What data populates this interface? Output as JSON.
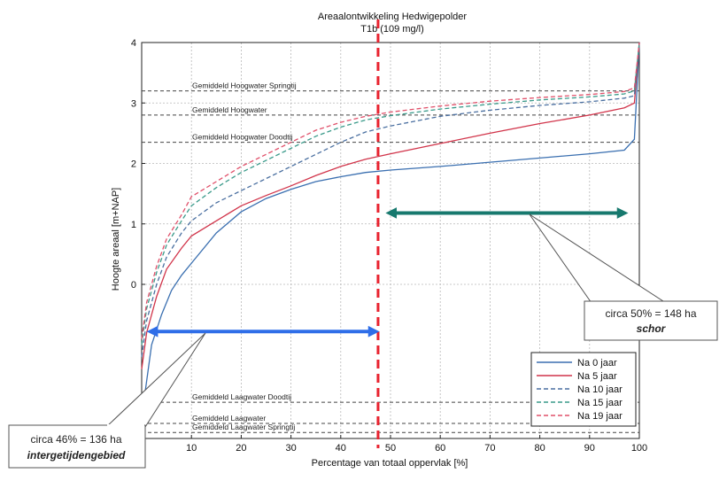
{
  "chart_data": {
    "type": "line",
    "title": "Areaalontwikkeling Hedwigepolder",
    "subtitle": "T1b (109 mg/l)",
    "xlabel": "Percentage van totaal oppervlak [%]",
    "ylabel": "Hoogte areaal [m+NAP]",
    "xlim": [
      0,
      100
    ],
    "ylim": [
      -2.2,
      4
    ],
    "xticks": [
      "10",
      "20",
      "30",
      "40",
      "50",
      "60",
      "70",
      "80",
      "90",
      "100"
    ],
    "yticks": [
      "0",
      "1",
      "2",
      "3",
      "4"
    ],
    "grid": true,
    "legend_position": "bottom-right",
    "series": [
      {
        "name": "Na 0 jaar",
        "color": "#3a6fb0",
        "dash": "solid",
        "x": [
          0,
          1,
          2,
          4,
          6,
          8,
          10,
          15,
          20,
          25,
          30,
          35,
          40,
          45,
          50,
          60,
          70,
          80,
          90,
          97,
          99,
          100
        ],
        "y": [
          -2.2,
          -1.6,
          -1.0,
          -0.5,
          -0.1,
          0.15,
          0.35,
          0.85,
          1.2,
          1.42,
          1.57,
          1.7,
          1.78,
          1.85,
          1.89,
          1.95,
          2.02,
          2.09,
          2.16,
          2.22,
          2.4,
          4.0
        ]
      },
      {
        "name": "Na 5 jaar",
        "color": "#d1344a",
        "dash": "solid",
        "x": [
          0,
          1,
          3,
          5,
          8,
          10,
          15,
          20,
          25,
          30,
          35,
          40,
          45,
          50,
          60,
          70,
          80,
          90,
          97,
          99,
          100
        ],
        "y": [
          -1.4,
          -0.8,
          -0.2,
          0.25,
          0.6,
          0.8,
          1.05,
          1.3,
          1.47,
          1.63,
          1.8,
          1.95,
          2.07,
          2.16,
          2.33,
          2.5,
          2.66,
          2.8,
          2.92,
          3.0,
          4.0
        ]
      },
      {
        "name": "Na 10 jaar",
        "color": "#4a6fa0",
        "dash": "dashed",
        "x": [
          0,
          1,
          3,
          5,
          8,
          10,
          15,
          20,
          25,
          30,
          35,
          40,
          45,
          50,
          60,
          70,
          80,
          90,
          97,
          99,
          100
        ],
        "y": [
          -1.2,
          -0.6,
          0.0,
          0.45,
          0.85,
          1.05,
          1.35,
          1.55,
          1.75,
          1.95,
          2.15,
          2.35,
          2.52,
          2.62,
          2.78,
          2.88,
          2.96,
          3.02,
          3.08,
          3.12,
          4.0
        ]
      },
      {
        "name": "Na 15 jaar",
        "color": "#3a9a8a",
        "dash": "dashed",
        "x": [
          0,
          1,
          3,
          5,
          8,
          10,
          15,
          20,
          25,
          30,
          35,
          40,
          45,
          50,
          60,
          70,
          80,
          90,
          97,
          99,
          100
        ],
        "y": [
          -1.0,
          -0.4,
          0.2,
          0.65,
          1.05,
          1.3,
          1.6,
          1.85,
          2.05,
          2.25,
          2.45,
          2.6,
          2.72,
          2.79,
          2.9,
          2.98,
          3.05,
          3.1,
          3.15,
          3.2,
          4.0
        ]
      },
      {
        "name": "Na 19 jaar",
        "color": "#e0506a",
        "dash": "dashed",
        "x": [
          0,
          1,
          3,
          5,
          8,
          10,
          15,
          20,
          25,
          30,
          35,
          40,
          45,
          50,
          60,
          70,
          80,
          90,
          97,
          99,
          100
        ],
        "y": [
          -0.9,
          -0.3,
          0.3,
          0.75,
          1.15,
          1.45,
          1.7,
          1.95,
          2.15,
          2.35,
          2.55,
          2.68,
          2.78,
          2.85,
          2.95,
          3.03,
          3.09,
          3.14,
          3.19,
          3.25,
          4.0
        ]
      }
    ],
    "reference_lines": [
      {
        "label": "Gemiddeld Hoogwater Springtij",
        "y": 3.2
      },
      {
        "label": "Gemiddeld Hoogwater",
        "y": 2.8
      },
      {
        "label": "Gemiddeld Hoogwater Doodtij",
        "y": 2.35
      },
      {
        "label": "Gemiddeld Laagwater Doodtij",
        "y": -1.95
      },
      {
        "label": "Gemiddeld Laagwater",
        "y": -2.3
      },
      {
        "label": "Gemiddeld Laagwater Springtij",
        "y": -2.45
      }
    ],
    "vertical_marker": {
      "x": 47.5,
      "color": "#e8222e"
    },
    "arrows": [
      {
        "name": "intergetijdengebied",
        "x_from": 0,
        "x_to": 47,
        "y": -0.78,
        "color": "#2f6ee8"
      },
      {
        "name": "schor",
        "x_from": 48,
        "x_to": 97,
        "y": 1.18,
        "color": "#17796e"
      }
    ]
  },
  "callouts": {
    "schor": {
      "line1": "circa 50%  = 148 ha",
      "line2": "schor"
    },
    "intergetijden": {
      "line1": "circa 46%  = 136 ha",
      "line2": "intergetijdengebied"
    }
  }
}
